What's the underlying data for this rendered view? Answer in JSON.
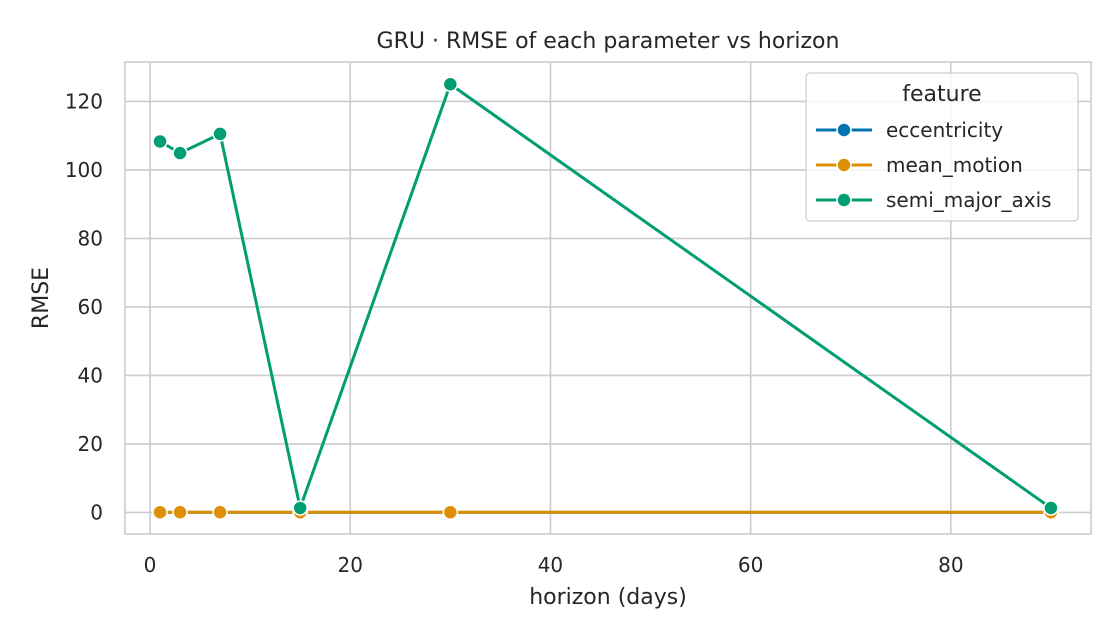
{
  "chart_data": {
    "type": "line",
    "title": "GRU · RMSE of each parameter vs horizon",
    "xlabel": "horizon (days)",
    "ylabel": "RMSE",
    "x": [
      1,
      3,
      7,
      15,
      30,
      90
    ],
    "xlim": [
      -2.5,
      94
    ],
    "ylim": [
      -6.3,
      131.5
    ],
    "xticks": [
      0,
      20,
      40,
      60,
      80
    ],
    "yticks": [
      0,
      20,
      40,
      60,
      80,
      100,
      120
    ],
    "grid": true,
    "legend": {
      "title": "feature",
      "placement": "top-right"
    },
    "series": [
      {
        "name": "eccentricity",
        "color": "#0173b2",
        "values": [
          0.001,
          0.001,
          0.001,
          0.001,
          0.001,
          0.001
        ]
      },
      {
        "name": "mean_motion",
        "color": "#de8f05",
        "values": [
          0.05,
          0.05,
          0.05,
          0.05,
          0.05,
          0.05
        ]
      },
      {
        "name": "semi_major_axis",
        "color": "#029e73",
        "values": [
          108.3,
          104.9,
          110.5,
          1.3,
          125.0,
          1.3
        ]
      }
    ]
  }
}
